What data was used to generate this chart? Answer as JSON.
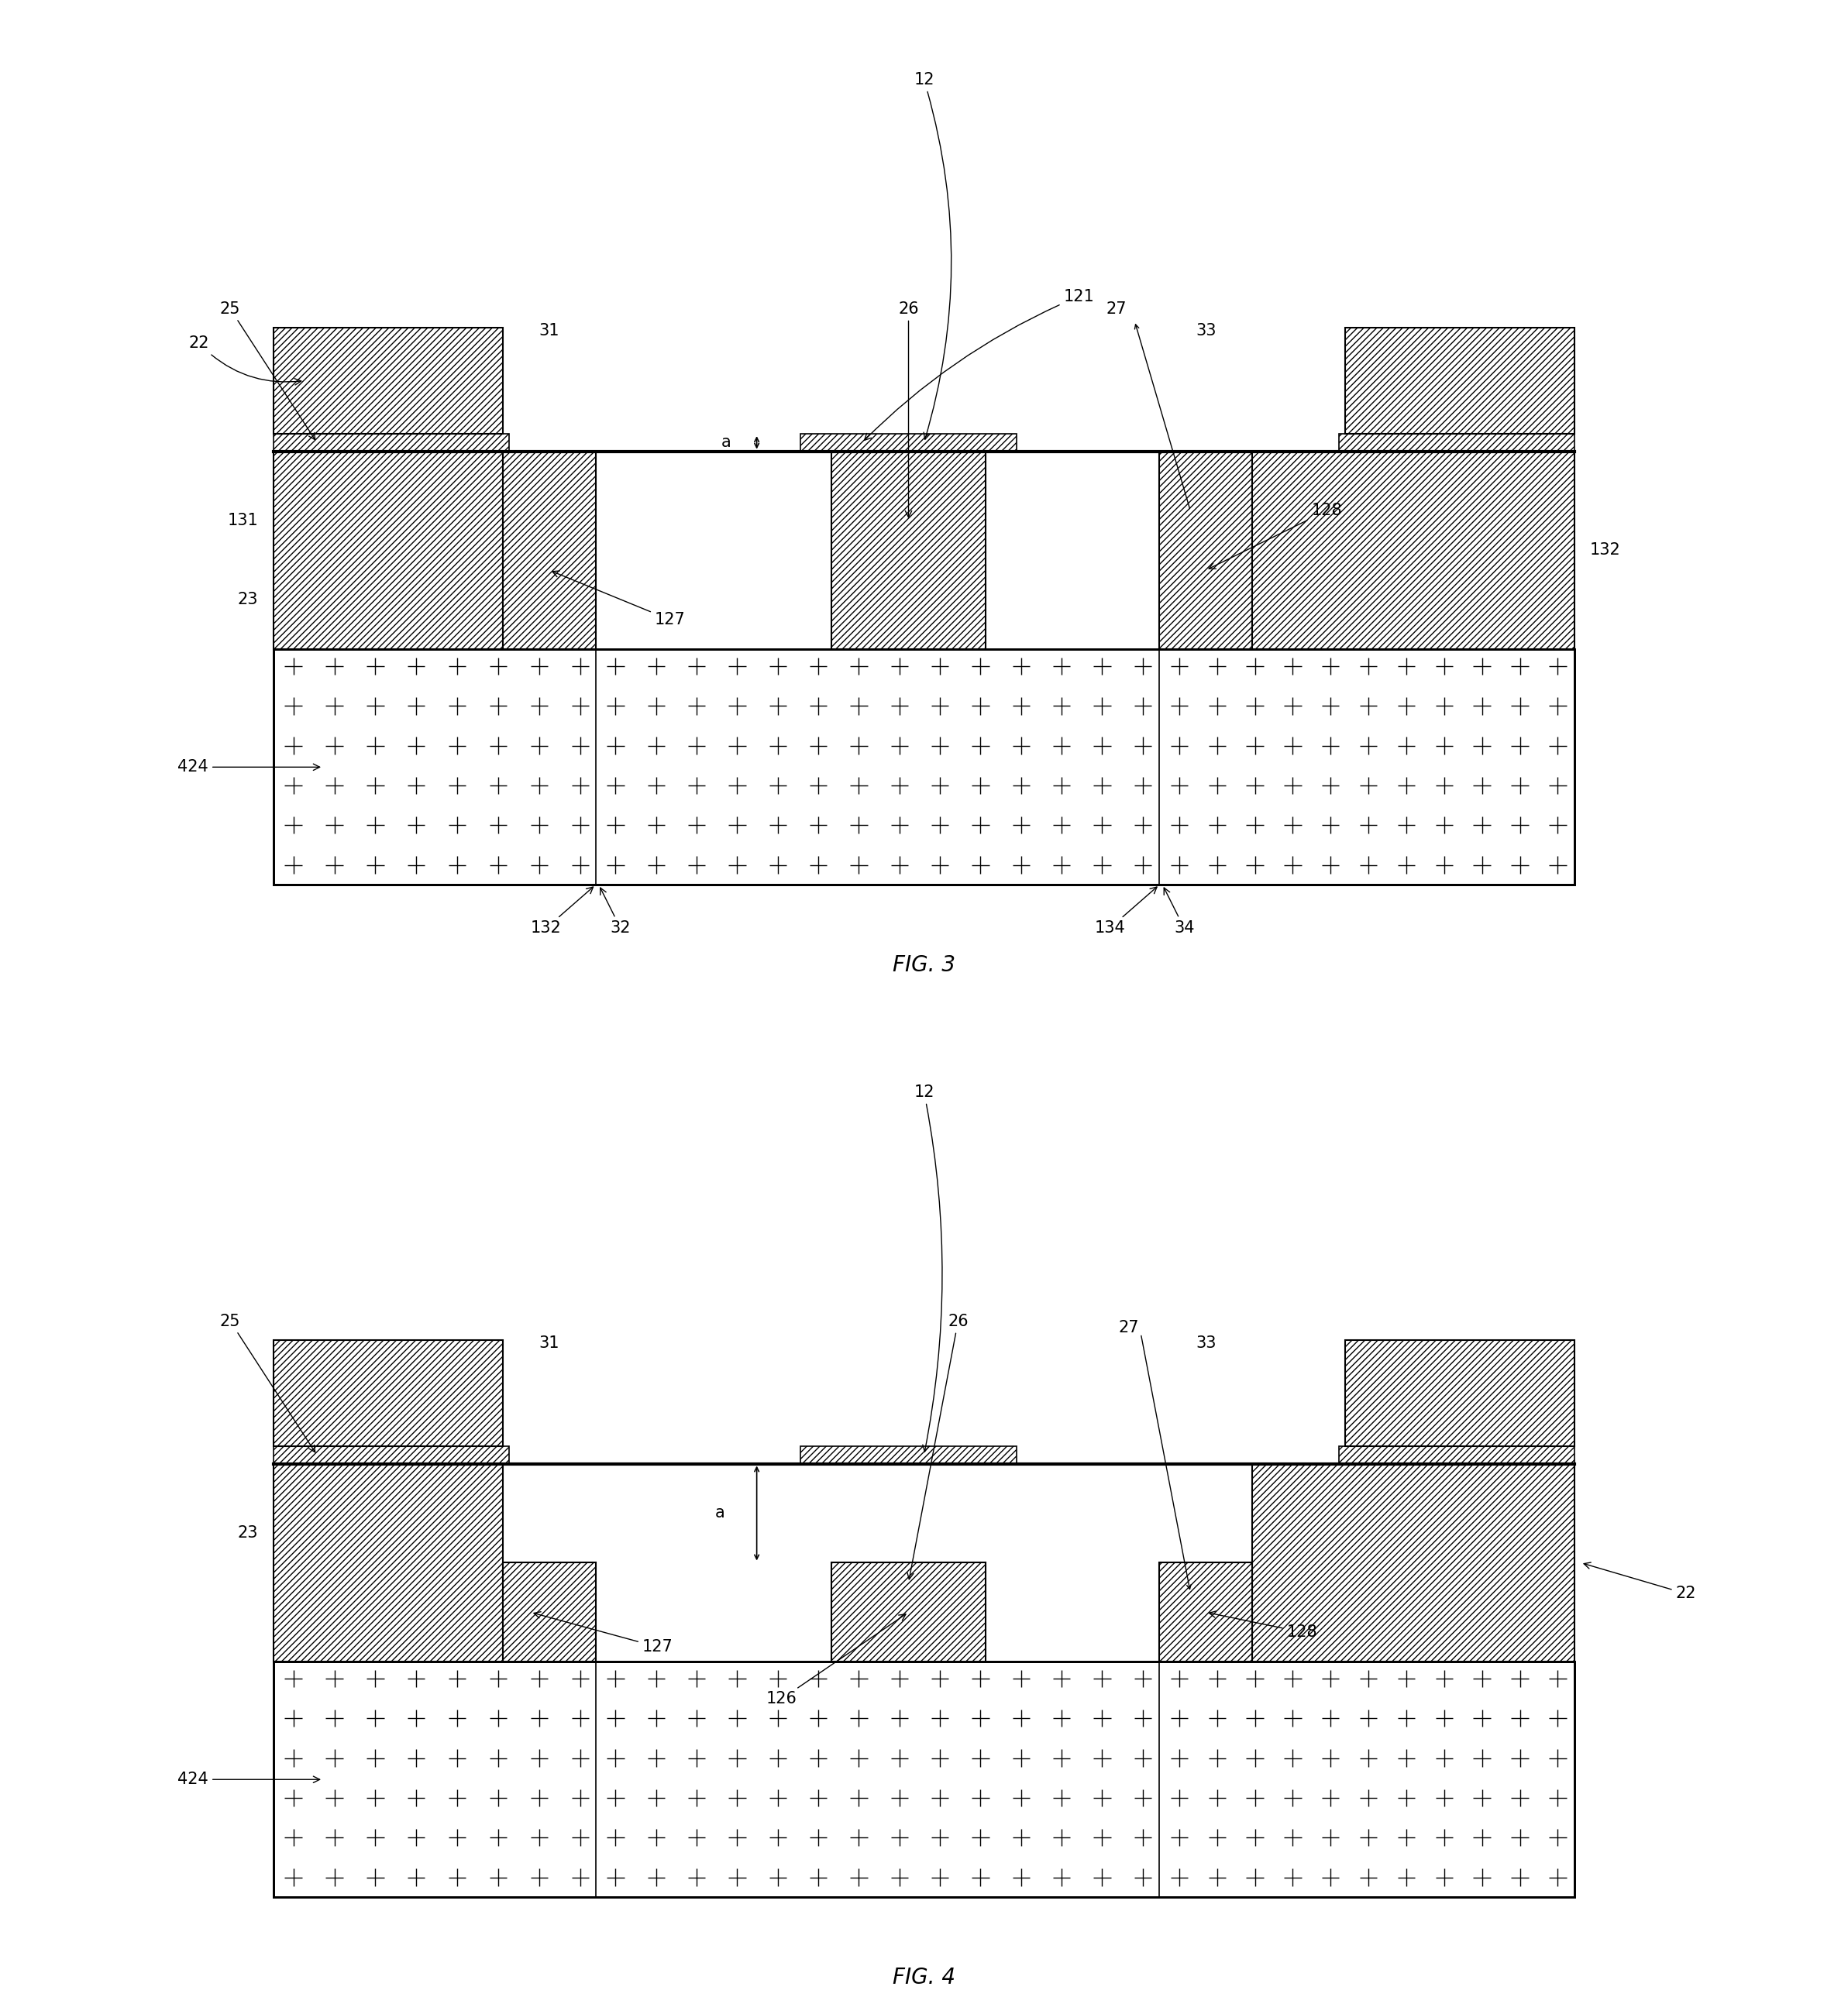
{
  "fig_width": 23.85,
  "fig_height": 26.0,
  "bg_color": "#ffffff",
  "fig3_title": "FIG. 3",
  "fig4_title": "FIG. 4",
  "ts": 15
}
